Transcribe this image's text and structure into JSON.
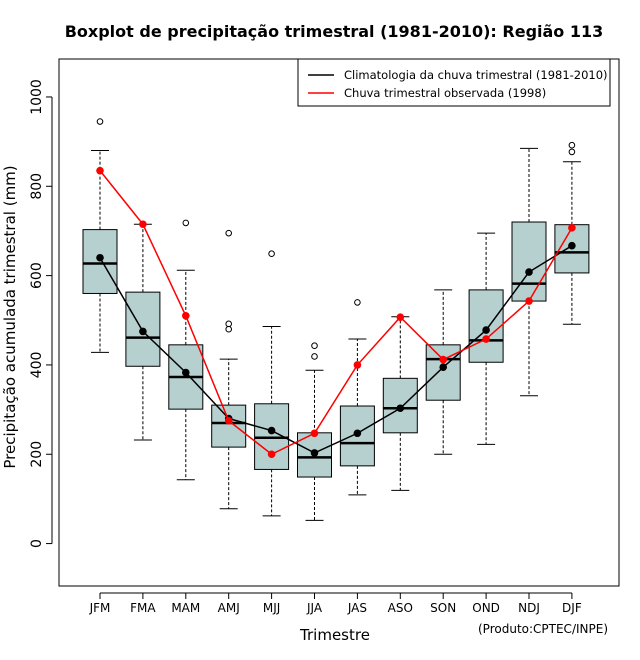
{
  "chart_data": {
    "type": "boxplot",
    "title": "Boxplot de precipitação trimestral (1981-2010): Região 113",
    "xlabel": "Trimestre",
    "ylabel": "Precipitação acumulada trimestral (mm)",
    "credit": "(Produto:CPTEC/INPE)",
    "ylim": [
      -95,
      1085
    ],
    "yticks": [
      0,
      200,
      400,
      600,
      800,
      1000
    ],
    "categories": [
      "JFM",
      "FMA",
      "MAM",
      "AMJ",
      "MJJ",
      "JJA",
      "JAS",
      "ASO",
      "SON",
      "OND",
      "NDJ",
      "DJF"
    ],
    "boxes": [
      {
        "min": 428,
        "q1": 560,
        "median": 627,
        "q3": 703,
        "max": 880,
        "outliers": [
          945
        ]
      },
      {
        "min": 232,
        "q1": 397,
        "median": 461,
        "q3": 563,
        "max": 715,
        "outliers": []
      },
      {
        "min": 143,
        "q1": 301,
        "median": 373,
        "q3": 445,
        "max": 612,
        "outliers": [
          718
        ]
      },
      {
        "min": 78,
        "q1": 216,
        "median": 270,
        "q3": 310,
        "max": 413,
        "outliers": [
          480,
          492,
          695
        ]
      },
      {
        "min": 62,
        "q1": 166,
        "median": 237,
        "q3": 313,
        "max": 486,
        "outliers": [
          649
        ]
      },
      {
        "min": 52,
        "q1": 149,
        "median": 193,
        "q3": 248,
        "max": 388,
        "outliers": [
          419,
          443
        ]
      },
      {
        "min": 109,
        "q1": 174,
        "median": 225,
        "q3": 308,
        "max": 458,
        "outliers": [
          540
        ]
      },
      {
        "min": 119,
        "q1": 248,
        "median": 303,
        "q3": 370,
        "max": 508,
        "outliers": []
      },
      {
        "min": 200,
        "q1": 321,
        "median": 413,
        "q3": 445,
        "max": 568,
        "outliers": []
      },
      {
        "min": 222,
        "q1": 406,
        "median": 455,
        "q3": 568,
        "max": 695,
        "outliers": []
      },
      {
        "min": 331,
        "q1": 543,
        "median": 582,
        "q3": 720,
        "max": 885,
        "outliers": []
      },
      {
        "min": 491,
        "q1": 606,
        "median": 652,
        "q3": 714,
        "max": 855,
        "outliers": [
          877,
          892
        ]
      }
    ],
    "series": [
      {
        "name": "Climatologia da chuva trimestral (1981-2010)",
        "color": "#000000",
        "values": [
          640,
          475,
          383,
          280,
          253,
          203,
          247,
          303,
          395,
          478,
          608,
          667
        ]
      },
      {
        "name": "Chuva trimestral observada (1998)",
        "color": "#ff0000",
        "values": [
          835,
          715,
          510,
          275,
          200,
          247,
          400,
          507,
          412,
          458,
          543,
          707
        ]
      }
    ],
    "box_fill": "#b6d0d0",
    "legend_position": "top-right"
  }
}
